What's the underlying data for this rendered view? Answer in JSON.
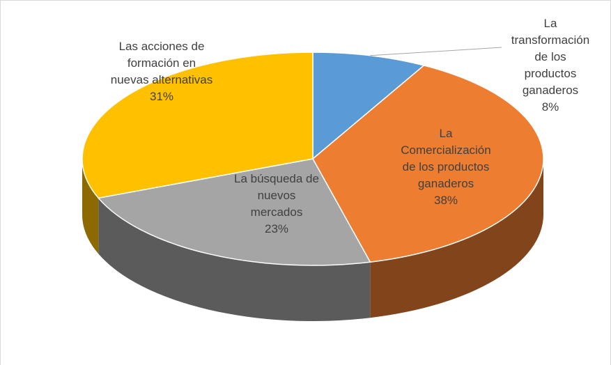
{
  "chart_data": {
    "type": "pie",
    "categories": [
      "La transformación de los productos ganaderos",
      "La Comercialización de los productos ganaderos",
      "La búsqueda de nuevos mercados",
      "Las acciones de formación en nuevas alternativas"
    ],
    "values": [
      8,
      38,
      23,
      31
    ],
    "value_labels": [
      "8%",
      "38%",
      "23%",
      "31%"
    ],
    "colors": [
      "#5b9bd5",
      "#ed7d31",
      "#a5a5a5",
      "#ffc000"
    ]
  }
}
